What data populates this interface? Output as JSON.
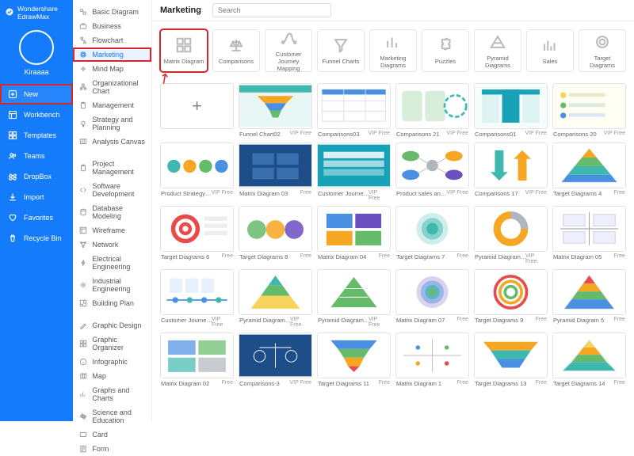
{
  "brand": "Wondershare EdrawMax",
  "username": "Kiraaaa",
  "palette": {
    "accent": "#147bfb",
    "highlight_border": "#d62828",
    "teal": "#3fb8af",
    "teal_dark": "#17a2b8",
    "green": "#66bb6a",
    "blue": "#4a90e2",
    "navy": "#1d4e89",
    "orange": "#f5a623",
    "red": "#e94b4b",
    "purple": "#6a4fc1",
    "yellow": "#f6d35b",
    "grey": "#b0b6bd"
  },
  "nav": [
    {
      "key": "new",
      "label": "New",
      "icon": "plus-box",
      "highlight": true
    },
    {
      "key": "workbench",
      "label": "Workbench",
      "icon": "layout"
    },
    {
      "key": "templates",
      "label": "Templates",
      "icon": "grid"
    },
    {
      "key": "teams",
      "label": "Teams",
      "icon": "users"
    },
    {
      "key": "dropbox",
      "label": "DropBox",
      "icon": "dropbox"
    },
    {
      "key": "import",
      "label": "Import",
      "icon": "import"
    },
    {
      "key": "favorites",
      "label": "Favorites",
      "icon": "heart"
    },
    {
      "key": "recycle",
      "label": "Recycle Bin",
      "icon": "trash"
    }
  ],
  "page_title": "Marketing",
  "search_placeholder": "Search",
  "categories": [
    {
      "label": "Basic Diagram",
      "icon": "shapes"
    },
    {
      "label": "Business",
      "icon": "briefcase"
    },
    {
      "label": "Flowchart",
      "icon": "flow"
    },
    {
      "label": "Marketing",
      "icon": "target",
      "selected": true
    },
    {
      "label": "Mind Map",
      "icon": "mind"
    },
    {
      "label": "Organizational Chart",
      "icon": "org"
    },
    {
      "label": "Management",
      "icon": "clipboard"
    },
    {
      "label": "Strategy and Planning",
      "icon": "bulb"
    },
    {
      "label": "Analysis Canvas",
      "icon": "canvas"
    },
    {
      "sep": true
    },
    {
      "label": "Project Management",
      "icon": "clipboard"
    },
    {
      "label": "Software Development",
      "icon": "code"
    },
    {
      "label": "Database Modeling",
      "icon": "db"
    },
    {
      "label": "Wireframe",
      "icon": "wf"
    },
    {
      "label": "Network",
      "icon": "net"
    },
    {
      "label": "Electrical Engineering",
      "icon": "spark"
    },
    {
      "label": "Industrial Engineering",
      "icon": "gear"
    },
    {
      "label": "Building Plan",
      "icon": "floor"
    },
    {
      "sep": true
    },
    {
      "label": "Graphic Design",
      "icon": "pen"
    },
    {
      "label": "Graphic Organizer",
      "icon": "grid"
    },
    {
      "label": "Infographic",
      "icon": "info"
    },
    {
      "label": "Map",
      "icon": "map"
    },
    {
      "label": "Graphs and Charts",
      "icon": "bars"
    },
    {
      "label": "Science and Education",
      "icon": "atom"
    },
    {
      "label": "Card",
      "icon": "card"
    },
    {
      "label": "Form",
      "icon": "form"
    }
  ],
  "subtypes": [
    {
      "key": "matrix",
      "label": "Matrix Diagram",
      "icon": "matrix",
      "highlight": true
    },
    {
      "key": "comparisons",
      "label": "Comparisons",
      "icon": "scales"
    },
    {
      "key": "cjm",
      "label": "Customer Journey Mapping",
      "icon": "journey"
    },
    {
      "key": "funnel",
      "label": "Funnel Charts",
      "icon": "funnel"
    },
    {
      "key": "mkt",
      "label": "Marketing Diagrams",
      "icon": "bars"
    },
    {
      "key": "puzzles",
      "label": "Puzzles",
      "icon": "puzzle"
    },
    {
      "key": "pyramid",
      "label": "Pyramid Diagrams",
      "icon": "pyramid"
    },
    {
      "key": "sales",
      "label": "Sales",
      "icon": "sales"
    },
    {
      "key": "target",
      "label": "Target Diagrams",
      "icon": "target"
    }
  ],
  "templates": [
    {
      "name": "",
      "tag": "",
      "thumb": "plus"
    },
    {
      "name": "Funnel Chart02",
      "tag": "VIP Free",
      "thumb": "funnel_teal"
    },
    {
      "name": "Comparisons03",
      "tag": "VIP Free",
      "thumb": "table_blue"
    },
    {
      "name": "Comparisons 21",
      "tag": "VIP Free",
      "thumb": "panels_green"
    },
    {
      "name": "Comparisons01",
      "tag": "VIP Free",
      "thumb": "columns_teal"
    },
    {
      "name": "Comparisons 20",
      "tag": "VIP Free",
      "thumb": "list_yellow"
    },
    {
      "name": "Product Strategy…",
      "tag": "VIP Free",
      "thumb": "row_circles"
    },
    {
      "name": "Matrix Diagram 03",
      "tag": "Free",
      "thumb": "matrix_navy"
    },
    {
      "name": "Customer Journe…",
      "tag": "VIP Free",
      "thumb": "cjm_teal"
    },
    {
      "name": "Product sales an…",
      "tag": "VIP Free",
      "thumb": "nodes_multi"
    },
    {
      "name": "Comparisons 17",
      "tag": "VIP Free",
      "thumb": "arrows_v"
    },
    {
      "name": "Target Diagrams 4",
      "tag": "Free",
      "thumb": "pyramid_color"
    },
    {
      "name": "Target Diagrams 6",
      "tag": "Free",
      "thumb": "target_red"
    },
    {
      "name": "Target Diagrams 8",
      "tag": "Free",
      "thumb": "circles3"
    },
    {
      "name": "Matrix Diagram 04",
      "tag": "Free",
      "thumb": "quad_multi"
    },
    {
      "name": "Target Diagrams 7",
      "tag": "Free",
      "thumb": "target_green"
    },
    {
      "name": "Pyramid Diagram…",
      "tag": "VIP Free",
      "thumb": "donut_orange"
    },
    {
      "name": "Matrix Diagram 05",
      "tag": "Free",
      "thumb": "quad_grey"
    },
    {
      "name": "Customer Journe…",
      "tag": "VIP Free",
      "thumb": "timeline_blue"
    },
    {
      "name": "Pyramid Diagram…",
      "tag": "VIP Free",
      "thumb": "pyramid_teal"
    },
    {
      "name": "Pyramid Diagram…",
      "tag": "VIP Free",
      "thumb": "pyramid_green"
    },
    {
      "name": "Matrix Diagram 07",
      "tag": "Free",
      "thumb": "target_grad"
    },
    {
      "name": "Target Diagrams 9",
      "tag": "Free",
      "thumb": "target_multi"
    },
    {
      "name": "Pyramid Diagram 5",
      "tag": "Free",
      "thumb": "pyramid_redtop"
    },
    {
      "name": "Matrix Diagram 02",
      "tag": "Free",
      "thumb": "quad_bluegreen"
    },
    {
      "name": "Comparisons-3",
      "tag": "VIP Free",
      "thumb": "scales_blue"
    },
    {
      "name": "Target Diagrams 11",
      "tag": "Free",
      "thumb": "funnel_inv"
    },
    {
      "name": "Matrix Diagram 1",
      "tag": "Free",
      "thumb": "quad_plain"
    },
    {
      "name": "Target Diagrams 13",
      "tag": "Free",
      "thumb": "funnel_wide"
    },
    {
      "name": "Target Diagrams 14",
      "tag": "Free",
      "thumb": "pyramid_segments"
    }
  ]
}
